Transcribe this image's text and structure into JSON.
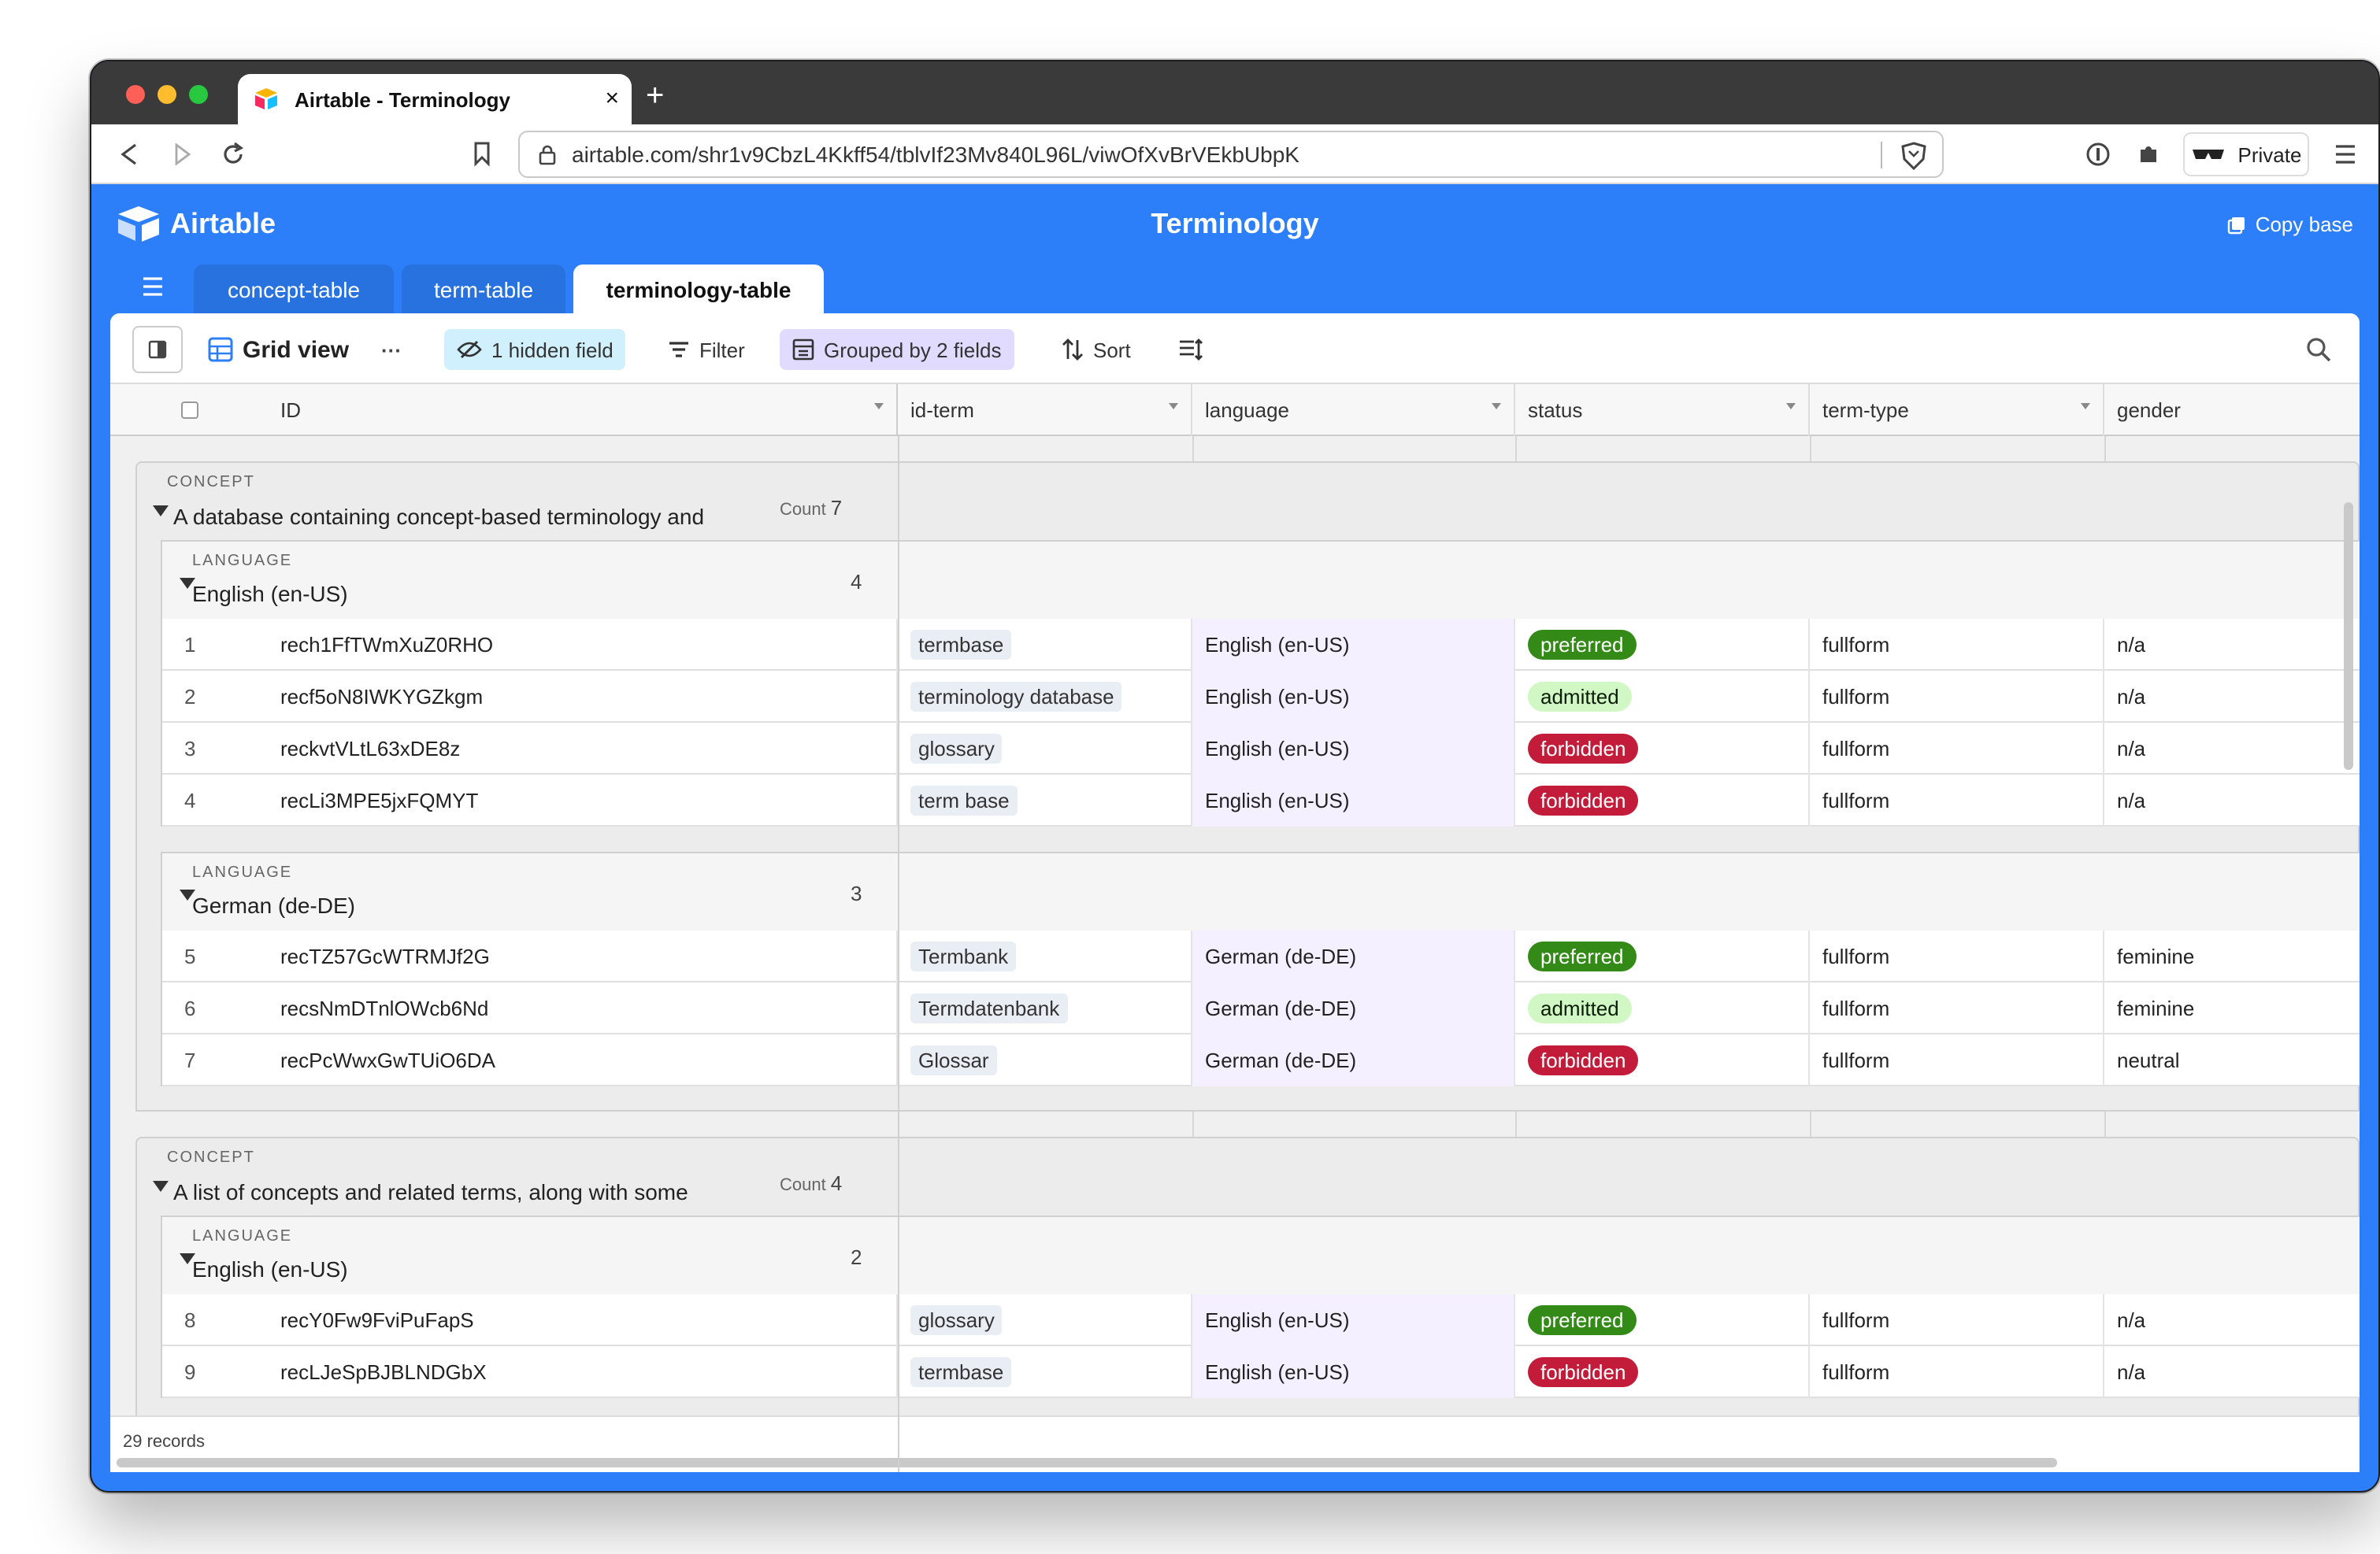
{
  "browser": {
    "tab_title": "Airtable - Terminology",
    "tab_close": "×",
    "new_tab": "+",
    "url": "airtable.com/shr1v9CbzL4Kkff54/tblvIf23Mv840L96L/viwOfXvBrVEkbUbpK",
    "private_label": "Private"
  },
  "app": {
    "logo_text": "Airtable",
    "title": "Terminology",
    "copy_base": "Copy base",
    "tables": [
      "concept-table",
      "term-table",
      "terminology-table"
    ],
    "active_table": "terminology-table"
  },
  "viewbar": {
    "view_name": "Grid view",
    "more": "···",
    "hidden": "1 hidden field",
    "filter": "Filter",
    "grouped": "Grouped by 2 fields",
    "sort": "Sort"
  },
  "columns": [
    "ID",
    "id-term",
    "language",
    "status",
    "term-type",
    "gender"
  ],
  "groups": [
    {
      "label": "CONCEPT",
      "value": "A database containing concept-based terminology and",
      "count_label": "Count",
      "count": "7",
      "subgroups": [
        {
          "label": "LANGUAGE",
          "value": "English (en-US)",
          "count": "4",
          "rows": [
            {
              "n": "1",
              "id": "rech1FfTWmXuZ0RHO",
              "term": "termbase",
              "language": "English (en-US)",
              "status": "preferred",
              "type": "fullform",
              "gender": "n/a"
            },
            {
              "n": "2",
              "id": "recf5oN8IWKYGZkgm",
              "term": "terminology database",
              "language": "English (en-US)",
              "status": "admitted",
              "type": "fullform",
              "gender": "n/a"
            },
            {
              "n": "3",
              "id": "reckvtVLtL63xDE8z",
              "term": "glossary",
              "language": "English (en-US)",
              "status": "forbidden",
              "type": "fullform",
              "gender": "n/a"
            },
            {
              "n": "4",
              "id": "recLi3MPE5jxFQMYT",
              "term": "term base",
              "language": "English (en-US)",
              "status": "forbidden",
              "type": "fullform",
              "gender": "n/a"
            }
          ]
        },
        {
          "label": "LANGUAGE",
          "value": "German (de-DE)",
          "count": "3",
          "rows": [
            {
              "n": "5",
              "id": "recTZ57GcWTRMJf2G",
              "term": "Termbank",
              "language": "German (de-DE)",
              "status": "preferred",
              "type": "fullform",
              "gender": "feminine"
            },
            {
              "n": "6",
              "id": "recsNmDTnlOWcb6Nd",
              "term": "Termdatenbank",
              "language": "German (de-DE)",
              "status": "admitted",
              "type": "fullform",
              "gender": "feminine"
            },
            {
              "n": "7",
              "id": "recPcWwxGwTUiO6DA",
              "term": "Glossar",
              "language": "German (de-DE)",
              "status": "forbidden",
              "type": "fullform",
              "gender": "neutral"
            }
          ]
        }
      ]
    },
    {
      "label": "CONCEPT",
      "value": "A list of concepts and related terms, along with some",
      "count_label": "Count",
      "count": "4",
      "subgroups": [
        {
          "label": "LANGUAGE",
          "value": "English (en-US)",
          "count": "2",
          "rows": [
            {
              "n": "8",
              "id": "recY0Fw9FviPuFapS",
              "term": "glossary",
              "language": "English (en-US)",
              "status": "preferred",
              "type": "fullform",
              "gender": "n/a"
            },
            {
              "n": "9",
              "id": "recLJeSpBJBLNDGbX",
              "term": "termbase",
              "language": "English (en-US)",
              "status": "forbidden",
              "type": "fullform",
              "gender": "n/a"
            }
          ]
        }
      ]
    }
  ],
  "status_colors": {
    "preferred": {
      "bg": "#338a17",
      "fg": "#ffffff"
    },
    "admitted": {
      "bg": "#d1f7c4",
      "fg": "#0b1d05"
    },
    "forbidden": {
      "bg": "#c31c3a",
      "fg": "#ffffff"
    }
  },
  "footer": {
    "records": "29 records"
  },
  "colors": {
    "brand": "#2d7ff9",
    "titlebar": "#3a3a3a"
  }
}
